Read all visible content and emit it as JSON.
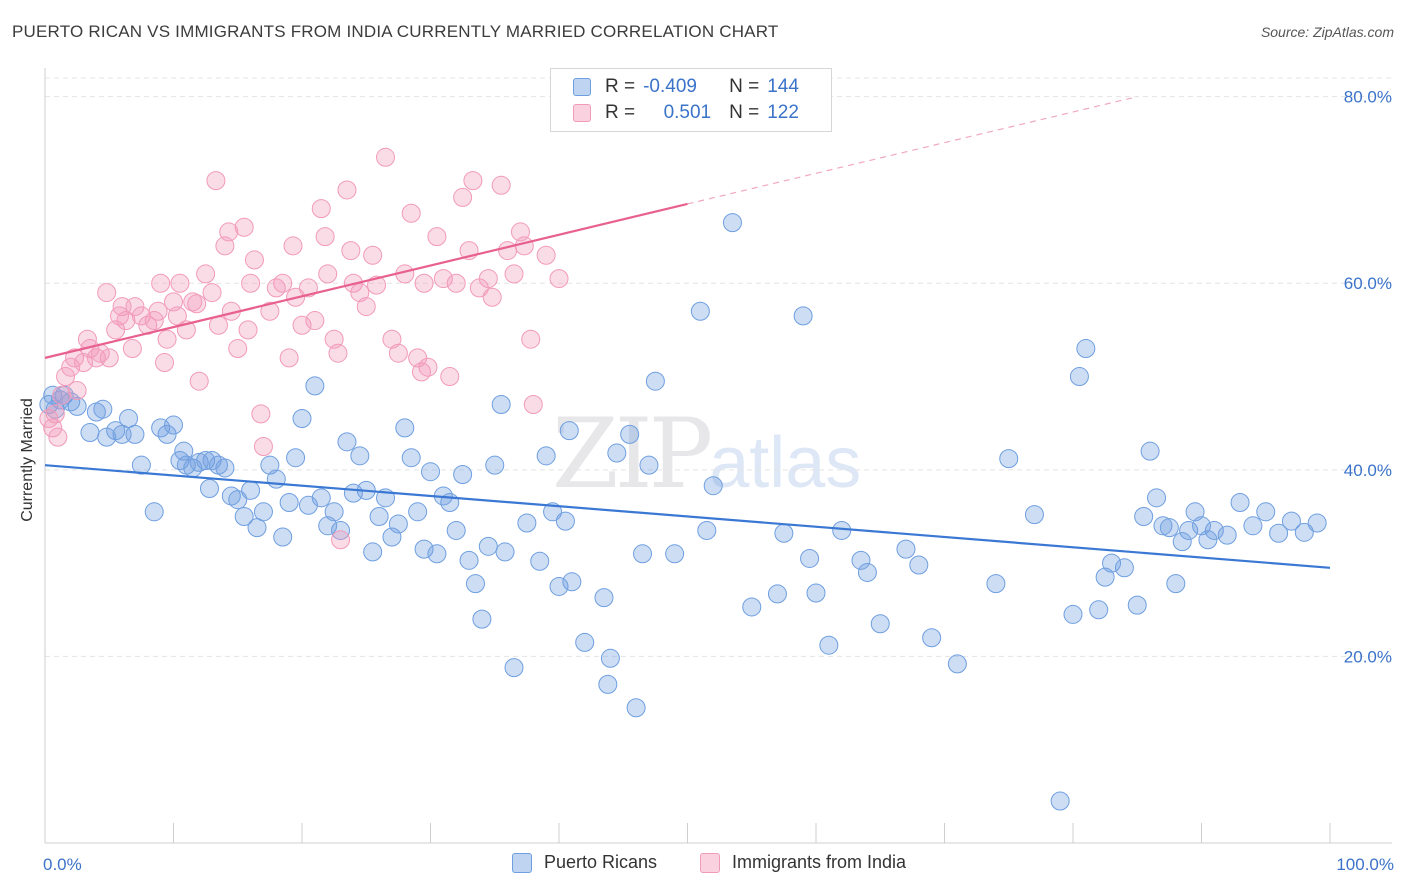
{
  "title": "PUERTO RICAN VS IMMIGRANTS FROM INDIA CURRENTLY MARRIED CORRELATION CHART",
  "source": "Source: ZipAtlas.com",
  "watermark": {
    "zip": "ZIP",
    "atlas": "atlas"
  },
  "legend": {
    "r_label": "R =",
    "n_label": "N =",
    "rows": [
      {
        "r": "-0.409",
        "n": "144"
      },
      {
        "r": "0.501",
        "n": "122"
      }
    ]
  },
  "bottom_legend": [
    "Puerto Ricans",
    "Immigrants from India"
  ],
  "chart_data": {
    "type": "scatter",
    "title": "PUERTO RICAN VS IMMIGRANTS FROM INDIA CURRENTLY MARRIED CORRELATION CHART",
    "xlabel": "",
    "ylabel": "Currently Married",
    "xlim": [
      0,
      100
    ],
    "ylim": [
      0,
      82
    ],
    "x_tick_labels": [
      "0.0%",
      "100.0%"
    ],
    "y_ticks": [
      20,
      40,
      60,
      80
    ],
    "y_tick_labels": [
      "20.0%",
      "40.0%",
      "60.0%",
      "80.0%"
    ],
    "grid": true,
    "legend_placement": "top-center",
    "colors": {
      "puerto_ricans": "#6f9fe0",
      "india": "#f29ab9",
      "blue_line": "#3a78d4",
      "pink_line": "#e8608f"
    },
    "series": [
      {
        "name": "Puerto Ricans",
        "trend": {
          "x": [
            0,
            100
          ],
          "y": [
            40.5,
            29.5
          ],
          "dashed_from": null
        },
        "points": [
          [
            0.3,
            47
          ],
          [
            0.6,
            48
          ],
          [
            0.8,
            46.5
          ],
          [
            1.2,
            47.5
          ],
          [
            1.5,
            48
          ],
          [
            2,
            47.3
          ],
          [
            2.5,
            46.8
          ],
          [
            3.5,
            44
          ],
          [
            4,
            46.2
          ],
          [
            4.5,
            46.5
          ],
          [
            4.8,
            43.5
          ],
          [
            5.5,
            44.2
          ],
          [
            6,
            43.8
          ],
          [
            6.5,
            45.5
          ],
          [
            7,
            43.8
          ],
          [
            7.5,
            40.5
          ],
          [
            8.5,
            35.5
          ],
          [
            9,
            44.5
          ],
          [
            9.5,
            43.8
          ],
          [
            10,
            44.8
          ],
          [
            10.5,
            41
          ],
          [
            10.8,
            42
          ],
          [
            11,
            40.5
          ],
          [
            11.5,
            40.2
          ],
          [
            12,
            40.8
          ],
          [
            12.5,
            41
          ],
          [
            12.8,
            38
          ],
          [
            13,
            41
          ],
          [
            13.5,
            40.5
          ],
          [
            14,
            40.2
          ],
          [
            14.5,
            37.2
          ],
          [
            15,
            36.8
          ],
          [
            15.5,
            35
          ],
          [
            16,
            37.8
          ],
          [
            16.5,
            33.8
          ],
          [
            17,
            35.5
          ],
          [
            17.5,
            40.5
          ],
          [
            18,
            39
          ],
          [
            18.5,
            32.8
          ],
          [
            19,
            36.5
          ],
          [
            19.5,
            41.3
          ],
          [
            20,
            45.5
          ],
          [
            20.5,
            36.2
          ],
          [
            21,
            49
          ],
          [
            21.5,
            37
          ],
          [
            22,
            34
          ],
          [
            22.5,
            35.5
          ],
          [
            23,
            33.5
          ],
          [
            23.5,
            43
          ],
          [
            24,
            37.5
          ],
          [
            24.5,
            41.5
          ],
          [
            25,
            37.8
          ],
          [
            25.5,
            31.2
          ],
          [
            26,
            35
          ],
          [
            26.5,
            37
          ],
          [
            27,
            32.8
          ],
          [
            27.5,
            34.2
          ],
          [
            28,
            44.5
          ],
          [
            28.5,
            41.3
          ],
          [
            29,
            35.5
          ],
          [
            29.5,
            31.5
          ],
          [
            30,
            39.8
          ],
          [
            30.5,
            31
          ],
          [
            31,
            37.2
          ],
          [
            31.5,
            36.5
          ],
          [
            32,
            33.5
          ],
          [
            32.5,
            39.5
          ],
          [
            33,
            30.3
          ],
          [
            33.5,
            27.8
          ],
          [
            34,
            24
          ],
          [
            34.5,
            31.8
          ],
          [
            35,
            40.5
          ],
          [
            35.5,
            47
          ],
          [
            35.8,
            31.2
          ],
          [
            36.5,
            18.8
          ],
          [
            37.5,
            34.3
          ],
          [
            38.5,
            30.2
          ],
          [
            39,
            41.5
          ],
          [
            39.5,
            35.5
          ],
          [
            40,
            27.5
          ],
          [
            40.5,
            34.5
          ],
          [
            40.8,
            44.2
          ],
          [
            41,
            28
          ],
          [
            42,
            21.5
          ],
          [
            43.5,
            26.3
          ],
          [
            43.8,
            17
          ],
          [
            44,
            19.8
          ],
          [
            44.5,
            41.8
          ],
          [
            45.5,
            43.8
          ],
          [
            46,
            14.5
          ],
          [
            46.5,
            31
          ],
          [
            47,
            40.5
          ],
          [
            47.5,
            49.5
          ],
          [
            49,
            31
          ],
          [
            51,
            57
          ],
          [
            51.5,
            33.5
          ],
          [
            52,
            38.3
          ],
          [
            53.5,
            66.5
          ],
          [
            55,
            25.3
          ],
          [
            57,
            26.7
          ],
          [
            57.5,
            33.2
          ],
          [
            59,
            56.5
          ],
          [
            59.5,
            30.5
          ],
          [
            60,
            26.8
          ],
          [
            61,
            21.2
          ],
          [
            62,
            33.5
          ],
          [
            63.5,
            30.3
          ],
          [
            64,
            29
          ],
          [
            65,
            23.5
          ],
          [
            67,
            31.5
          ],
          [
            68,
            29.8
          ],
          [
            69,
            22
          ],
          [
            71,
            19.2
          ],
          [
            74,
            27.8
          ],
          [
            75,
            41.2
          ],
          [
            77,
            35.2
          ],
          [
            79,
            4.5
          ],
          [
            80,
            24.5
          ],
          [
            80.5,
            50
          ],
          [
            81,
            53
          ],
          [
            82,
            25
          ],
          [
            82.5,
            28.5
          ],
          [
            83,
            30
          ],
          [
            84,
            29.5
          ],
          [
            85,
            25.5
          ],
          [
            85.5,
            35
          ],
          [
            86,
            42
          ],
          [
            86.5,
            37
          ],
          [
            87,
            34
          ],
          [
            87.5,
            33.8
          ],
          [
            88,
            27.8
          ],
          [
            88.5,
            32.3
          ],
          [
            89,
            33.5
          ],
          [
            89.5,
            35.5
          ],
          [
            90,
            34
          ],
          [
            90.5,
            32.5
          ],
          [
            91,
            33.5
          ],
          [
            92,
            33
          ],
          [
            93,
            36.5
          ],
          [
            94,
            34
          ],
          [
            95,
            35.5
          ],
          [
            96,
            33.2
          ],
          [
            97,
            34.5
          ],
          [
            98,
            33.3
          ],
          [
            99,
            34.3
          ]
        ]
      },
      {
        "name": "Immigrants from India",
        "trend": {
          "x": [
            0,
            50
          ],
          "y": [
            52,
            68.5
          ],
          "dashed_to": [
            85,
            80
          ]
        },
        "points": [
          [
            0.3,
            45.5
          ],
          [
            0.6,
            44.5
          ],
          [
            0.8,
            46
          ],
          [
            1,
            43.5
          ],
          [
            1.3,
            48
          ],
          [
            1.6,
            50
          ],
          [
            2,
            51
          ],
          [
            2.3,
            52
          ],
          [
            2.5,
            48.5
          ],
          [
            3,
            51.5
          ],
          [
            3.3,
            54
          ],
          [
            3.5,
            53
          ],
          [
            4,
            52
          ],
          [
            4.3,
            52.5
          ],
          [
            4.8,
            59
          ],
          [
            5,
            52
          ],
          [
            5.5,
            55
          ],
          [
            5.8,
            56.5
          ],
          [
            6,
            57.5
          ],
          [
            6.3,
            56
          ],
          [
            6.8,
            53
          ],
          [
            7,
            57.5
          ],
          [
            7.5,
            56.5
          ],
          [
            8,
            55.5
          ],
          [
            8.5,
            56
          ],
          [
            8.8,
            57
          ],
          [
            9,
            60
          ],
          [
            9.3,
            51.5
          ],
          [
            9.5,
            54
          ],
          [
            10,
            58
          ],
          [
            10.3,
            56.5
          ],
          [
            10.5,
            60
          ],
          [
            11,
            55
          ],
          [
            11.5,
            58
          ],
          [
            11.8,
            57.8
          ],
          [
            12,
            49.5
          ],
          [
            12.5,
            61
          ],
          [
            13,
            59
          ],
          [
            13.3,
            71
          ],
          [
            13.5,
            55.5
          ],
          [
            14,
            64
          ],
          [
            14.3,
            65.5
          ],
          [
            14.5,
            57
          ],
          [
            15,
            53
          ],
          [
            15.5,
            66
          ],
          [
            15.8,
            55
          ],
          [
            16,
            60
          ],
          [
            16.3,
            62.5
          ],
          [
            16.8,
            46
          ],
          [
            17,
            42.5
          ],
          [
            17.5,
            57
          ],
          [
            18,
            59.5
          ],
          [
            18.5,
            60
          ],
          [
            19,
            52
          ],
          [
            19.3,
            64
          ],
          [
            19.5,
            58.5
          ],
          [
            20,
            55.5
          ],
          [
            20.5,
            59.5
          ],
          [
            21,
            56
          ],
          [
            21.5,
            68
          ],
          [
            21.8,
            65
          ],
          [
            22,
            61
          ],
          [
            22.5,
            54
          ],
          [
            22.8,
            52.5
          ],
          [
            23,
            32.5
          ],
          [
            23.5,
            70
          ],
          [
            23.8,
            63.5
          ],
          [
            24,
            60
          ],
          [
            24.5,
            59
          ],
          [
            25,
            57.5
          ],
          [
            25.5,
            63
          ],
          [
            25.8,
            59.8
          ],
          [
            26.5,
            73.5
          ],
          [
            27,
            54
          ],
          [
            27.5,
            52.5
          ],
          [
            28,
            61
          ],
          [
            28.5,
            67.5
          ],
          [
            29,
            52
          ],
          [
            29.3,
            50.5
          ],
          [
            29.5,
            60
          ],
          [
            29.8,
            51
          ],
          [
            30.5,
            65
          ],
          [
            31,
            60.5
          ],
          [
            31.5,
            50
          ],
          [
            32,
            60
          ],
          [
            32.5,
            69.2
          ],
          [
            33,
            63.5
          ],
          [
            33.3,
            71
          ],
          [
            33.8,
            59.5
          ],
          [
            34.5,
            60.5
          ],
          [
            34.8,
            58.5
          ],
          [
            35.5,
            70.5
          ],
          [
            36,
            63.5
          ],
          [
            36.5,
            61
          ],
          [
            37,
            65.5
          ],
          [
            37.3,
            64
          ],
          [
            37.8,
            54
          ],
          [
            38,
            47
          ],
          [
            39,
            63
          ],
          [
            40,
            60.5
          ]
        ]
      }
    ]
  }
}
